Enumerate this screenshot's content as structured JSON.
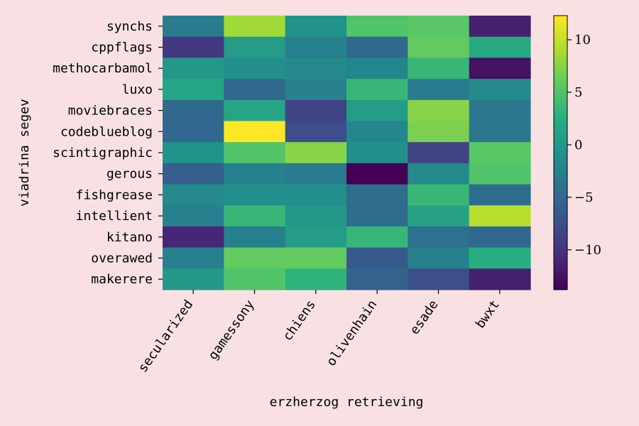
{
  "chart_data": {
    "type": "heatmap",
    "xlabel": "erzherzog retrieving",
    "ylabel": "viadrina segev",
    "x_categories": [
      "secularized",
      "gamessony",
      "chiens",
      "olivenhain",
      "esade",
      "bwxt"
    ],
    "y_categories": [
      "synchs",
      "cppflags",
      "methocarbamol",
      "luxo",
      "moviebraces",
      "codeblueblog",
      "scintigraphic",
      "gerous",
      "fishgrease",
      "intellient",
      "kitano",
      "overawed",
      "makerere"
    ],
    "values": [
      [
        -3.0,
        8.5,
        -0.5,
        5.0,
        5.5,
        -11.5
      ],
      [
        -9.5,
        0.5,
        -2.5,
        -5.0,
        6.0,
        2.0
      ],
      [
        0.0,
        -1.0,
        -1.5,
        -2.0,
        3.5,
        -12.5
      ],
      [
        1.5,
        -5.0,
        -2.5,
        3.5,
        -3.0,
        -1.5
      ],
      [
        -5.0,
        1.5,
        -8.5,
        0.5,
        7.5,
        -3.5
      ],
      [
        -5.0,
        12.3,
        -7.5,
        -2.0,
        7.0,
        -3.5
      ],
      [
        -0.5,
        5.0,
        7.5,
        -1.0,
        -8.5,
        5.5
      ],
      [
        -6.0,
        -2.5,
        -3.0,
        -13.8,
        -1.5,
        5.0
      ],
      [
        -1.5,
        -1.0,
        -1.0,
        -4.5,
        3.5,
        -4.5
      ],
      [
        -2.5,
        3.5,
        0.0,
        -4.5,
        1.0,
        9.5
      ],
      [
        -11.0,
        -2.5,
        0.5,
        3.5,
        -4.0,
        -5.0
      ],
      [
        -2.5,
        6.0,
        6.0,
        -6.5,
        -2.5,
        2.5
      ],
      [
        0.0,
        5.0,
        3.0,
        -5.5,
        -7.5,
        -11.5
      ]
    ],
    "colorbar": {
      "min": -13.8,
      "max": 12.3,
      "ticks": [
        10,
        5,
        0,
        -5,
        -10
      ],
      "tick_labels": [
        "10",
        "5",
        "0",
        "−5",
        "−10"
      ]
    },
    "colormap": "viridis",
    "grid": false,
    "colors": {
      "background": "#f9e1e3"
    }
  }
}
